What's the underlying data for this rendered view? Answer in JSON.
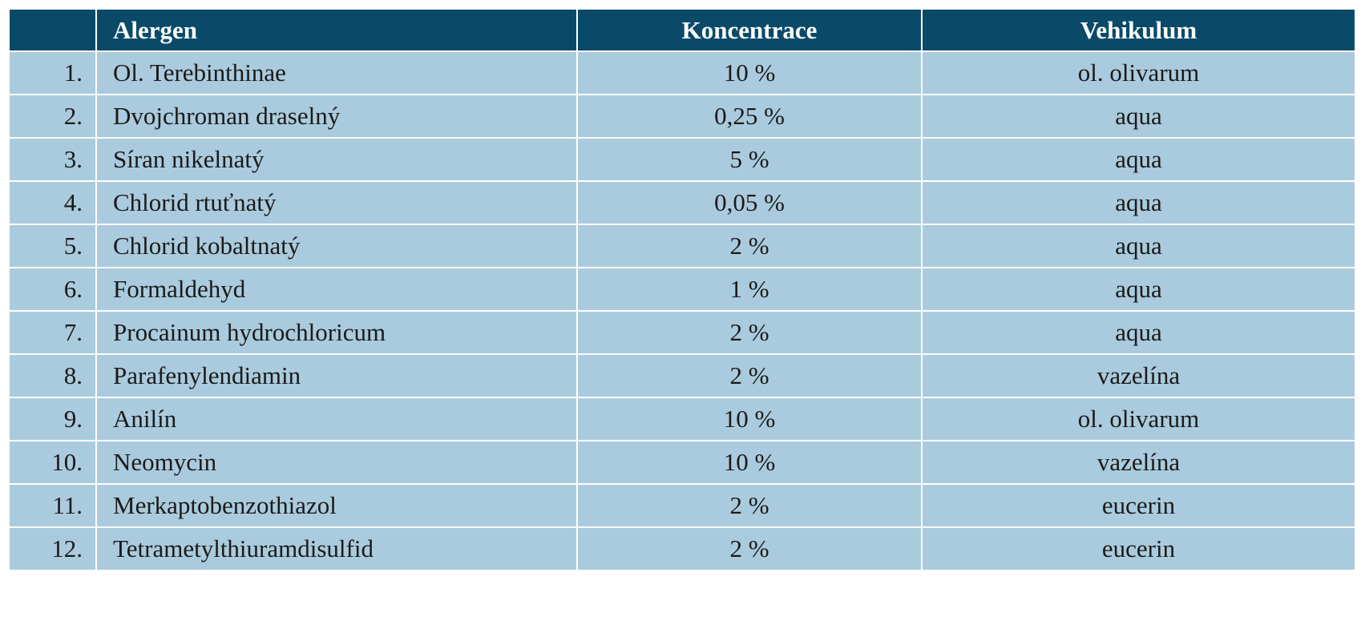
{
  "table": {
    "headers": {
      "number": "",
      "alergen": "Alergen",
      "koncentrace": "Koncentrace",
      "vehikulum": "Vehikulum"
    },
    "rows": [
      {
        "num": "1.",
        "alergen": "Ol. Terebinthinae",
        "koncentrace": "10 %",
        "vehikulum": "ol. olivarum"
      },
      {
        "num": "2.",
        "alergen": "Dvojchroman draselný",
        "koncentrace": "0,25 %",
        "vehikulum": "aqua"
      },
      {
        "num": "3.",
        "alergen": "Síran nikelnatý",
        "koncentrace": "5 %",
        "vehikulum": "aqua"
      },
      {
        "num": "4.",
        "alergen": "Chlorid rtuťnatý",
        "koncentrace": "0,05 %",
        "vehikulum": "aqua"
      },
      {
        "num": "5.",
        "alergen": "Chlorid kobaltnatý",
        "koncentrace": "2 %",
        "vehikulum": "aqua"
      },
      {
        "num": "6.",
        "alergen": "Formaldehyd",
        "koncentrace": "1 %",
        "vehikulum": "aqua"
      },
      {
        "num": "7.",
        "alergen": "Procainum hydrochloricum",
        "koncentrace": "2 %",
        "vehikulum": "aqua"
      },
      {
        "num": "8.",
        "alergen": "Parafenylendiamin",
        "koncentrace": "2 %",
        "vehikulum": "vazelína"
      },
      {
        "num": "9.",
        "alergen": "Anilín",
        "koncentrace": "10 %",
        "vehikulum": "ol. olivarum"
      },
      {
        "num": "10.",
        "alergen": "Neomycin",
        "koncentrace": "10 %",
        "vehikulum": "vazelína"
      },
      {
        "num": "11.",
        "alergen": "Merkaptobenzothiazol",
        "koncentrace": "2 %",
        "vehikulum": "eucerin"
      },
      {
        "num": "12.",
        "alergen": "Tetrametylthiuramdisulfid",
        "koncentrace": "2 %",
        "vehikulum": "eucerin"
      }
    ]
  },
  "colors": {
    "header_bg": "#0a4a68",
    "header_text": "#ffffff",
    "row_bg": "#aacbdd",
    "row_text": "#1a1a1a",
    "grid_line": "#ffffff"
  }
}
